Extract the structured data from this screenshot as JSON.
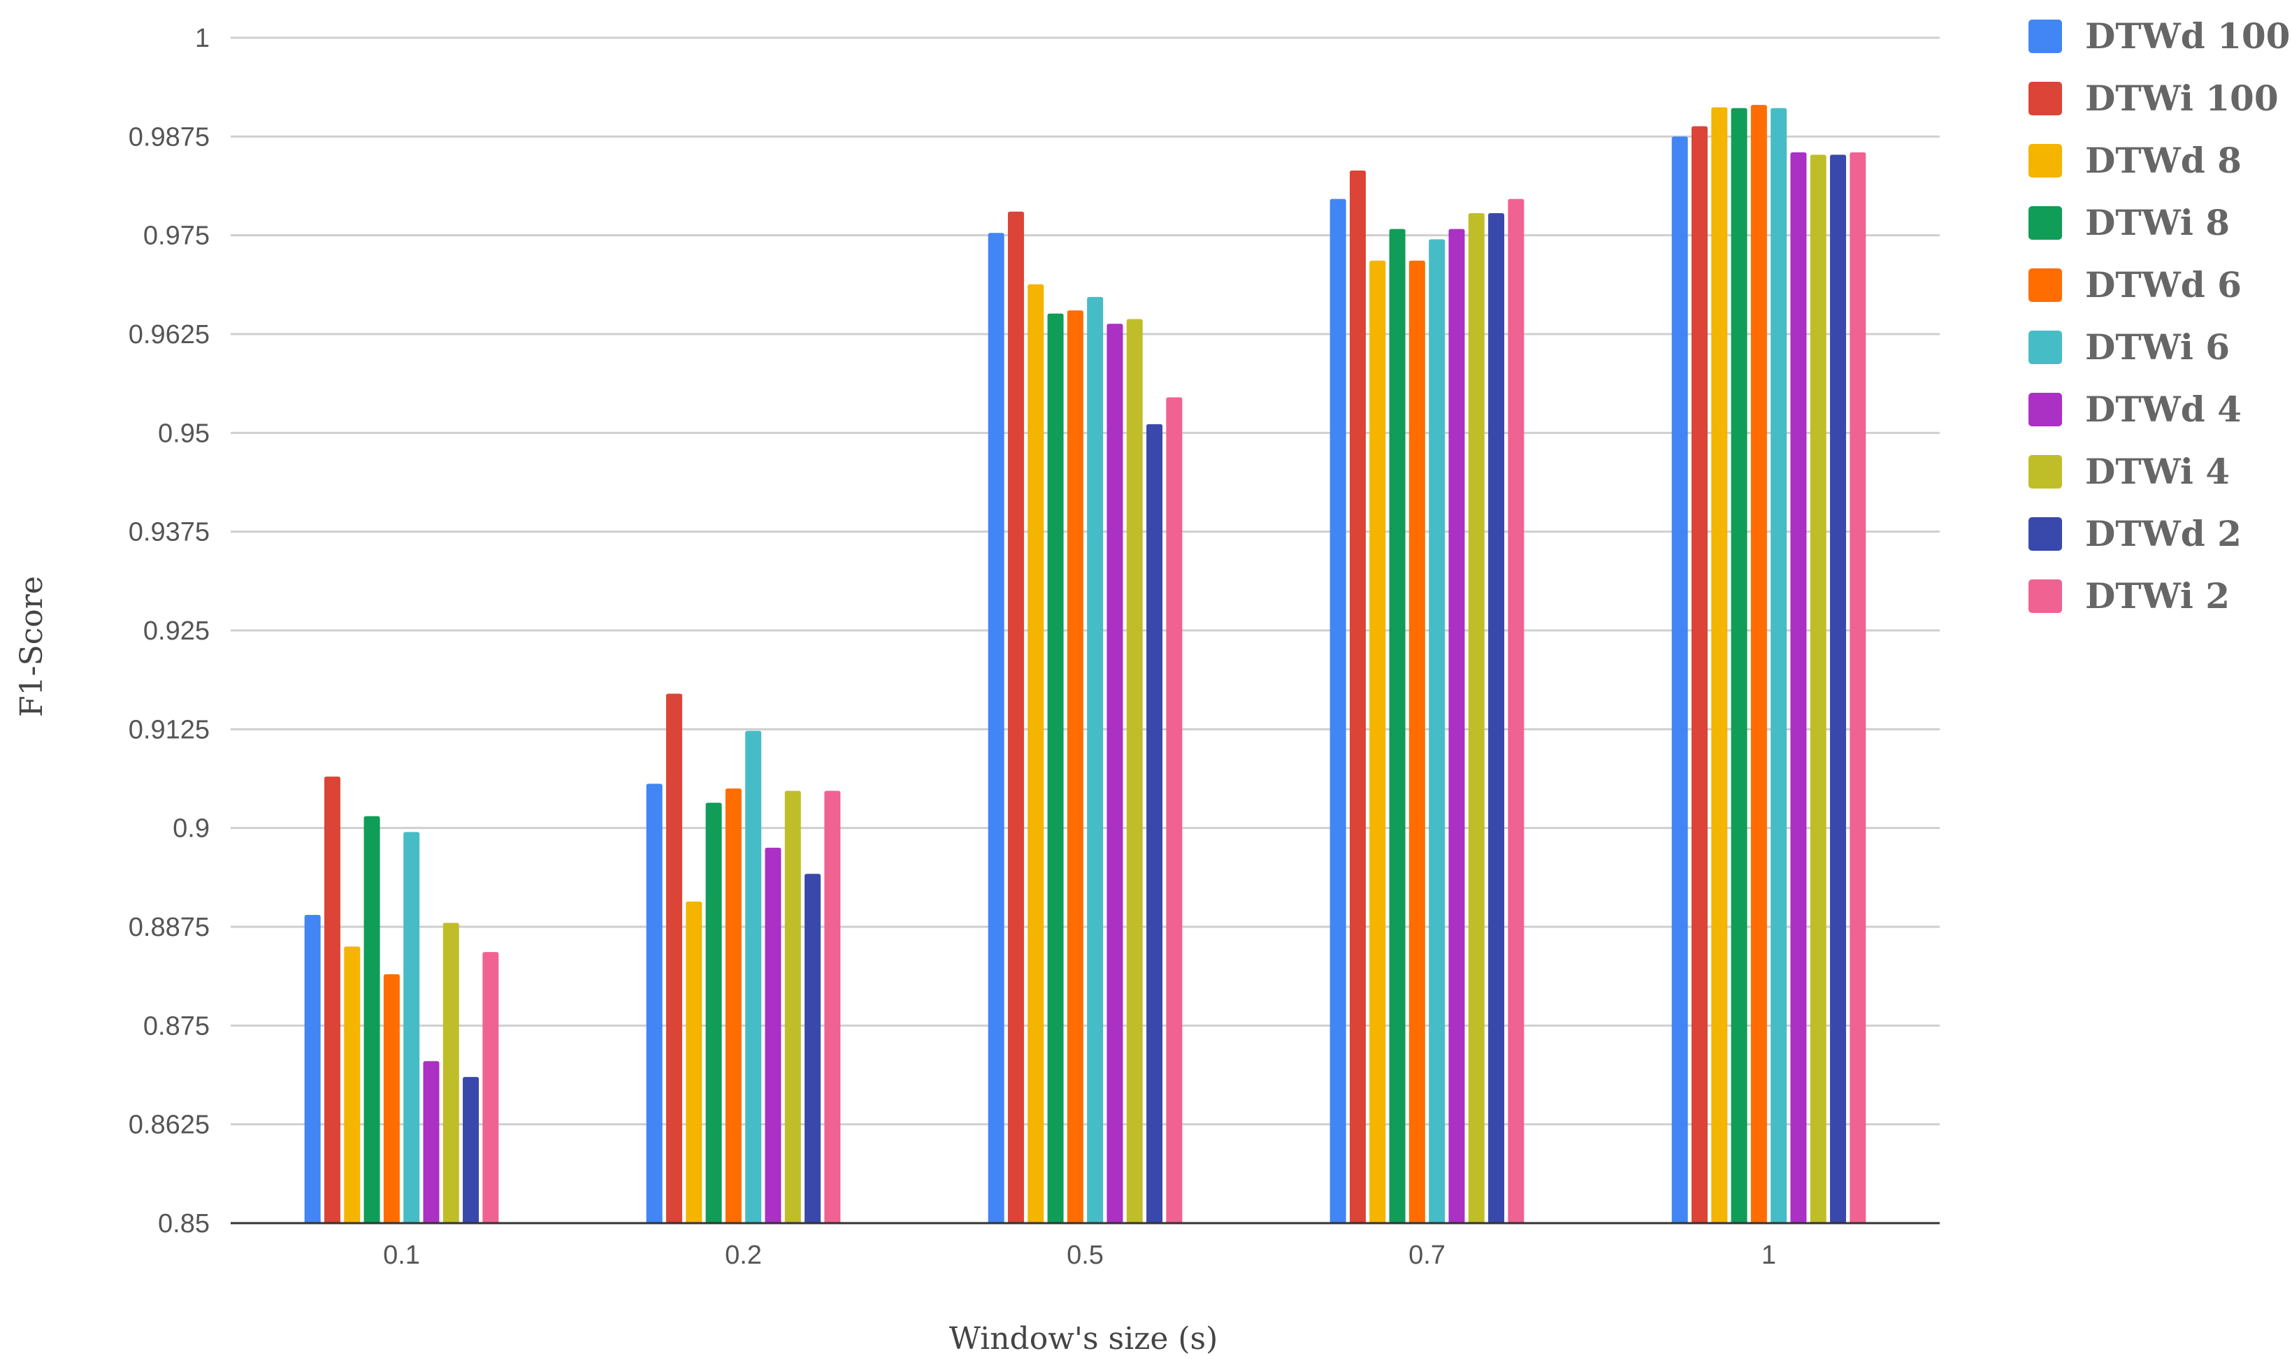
{
  "chart_data": {
    "type": "bar",
    "title": "",
    "xlabel": "Window's size (s)",
    "ylabel": "F1-Score",
    "ylim": [
      0.85,
      1
    ],
    "yticks": [
      "0.85",
      "0.8625",
      "0.875",
      "0.8875",
      "0.9",
      "0.9125",
      "0.925",
      "0.9375",
      "0.95",
      "0.9625",
      "0.975",
      "0.9875",
      "1"
    ],
    "categories": [
      "0.1",
      "0.2",
      "0.5",
      "0.7",
      "1"
    ],
    "grid": true,
    "legend_position": "right",
    "series": [
      {
        "name": "DTWd 100",
        "color": "#4285F4",
        "values": [
          0.889,
          0.9056,
          0.9753,
          0.9796,
          0.9875
        ]
      },
      {
        "name": "DTWi 100",
        "color": "#DB4437",
        "values": [
          0.9065,
          0.917,
          0.978,
          0.9832,
          0.9888
        ]
      },
      {
        "name": "DTWd 8",
        "color": "#F4B400",
        "values": [
          0.885,
          0.8907,
          0.9688,
          0.9718,
          0.9912
        ]
      },
      {
        "name": "DTWi 8",
        "color": "#0F9D58",
        "values": [
          0.9015,
          0.9032,
          0.9651,
          0.9758,
          0.9911
        ]
      },
      {
        "name": "DTWd 6",
        "color": "#FF6D00",
        "values": [
          0.8815,
          0.905,
          0.9655,
          0.9718,
          0.9915
        ]
      },
      {
        "name": "DTWi 6",
        "color": "#46BDC6",
        "values": [
          0.8995,
          0.9123,
          0.9672,
          0.9745,
          0.9911
        ]
      },
      {
        "name": "DTWd 4",
        "color": "#AB30C4",
        "values": [
          0.8705,
          0.8975,
          0.9638,
          0.9758,
          0.9855
        ]
      },
      {
        "name": "DTWi 4",
        "color": "#C0BE28",
        "values": [
          0.888,
          0.9047,
          0.9644,
          0.9778,
          0.9852
        ]
      },
      {
        "name": "DTWd 2",
        "color": "#3949AB",
        "values": [
          0.8685,
          0.8942,
          0.9511,
          0.9778,
          0.9852
        ]
      },
      {
        "name": "DTWi 2",
        "color": "#F06292",
        "values": [
          0.8843,
          0.9047,
          0.9545,
          0.9796,
          0.9855
        ]
      }
    ]
  }
}
